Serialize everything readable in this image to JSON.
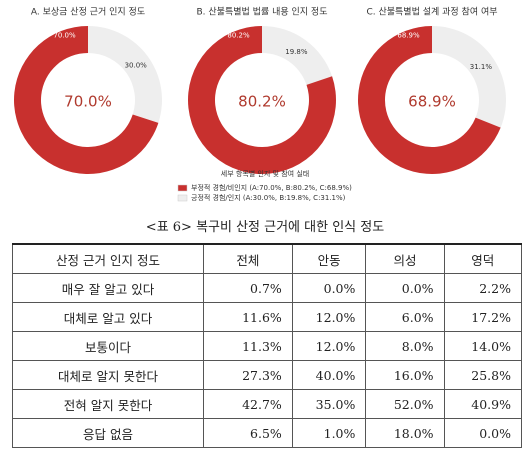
{
  "chart_data": [
    {
      "type": "pie",
      "title": "A. 보상금 산정 근거 인지 정도",
      "values": [
        70.0,
        30.0
      ],
      "value_labels": [
        "70.0%",
        "30.0%"
      ],
      "colors": [
        "#c8302e",
        "#eeeeee"
      ]
    },
    {
      "type": "pie",
      "title": "B. 산불특별법 법률 내용 인지 정도",
      "values": [
        80.2,
        19.8
      ],
      "value_labels": [
        "80.2%",
        "19.8%"
      ],
      "colors": [
        "#c8302e",
        "#eeeeee"
      ]
    },
    {
      "type": "pie",
      "title": "C. 산불특별법 설계 과정 참여 여부",
      "values": [
        68.9,
        31.1
      ],
      "value_labels": [
        "68.9%",
        "31.1%"
      ],
      "colors": [
        "#c8302e",
        "#eeeeee"
      ]
    }
  ],
  "legend": {
    "title": "세부 항목별 인지 및 참여 실태",
    "items": [
      {
        "label": "부정적 경험/비인지 (A:70.0%, B:80.2%, C:68.9%)",
        "color": "#c8302e"
      },
      {
        "label": "긍정적 경험/인지 (A:30.0%, B:19.8%, C:31.1%)",
        "color": "#eeeeee"
      }
    ]
  },
  "table": {
    "caption": "<표 6> 복구비 산정 근거에 대한 인식 정도",
    "header": [
      "산정 근거 인지 정도",
      "전체",
      "안동",
      "의성",
      "영덕"
    ],
    "rows": [
      [
        "매우 잘 알고 있다",
        "0.7%",
        "0.0%",
        "0.0%",
        "2.2%"
      ],
      [
        "대체로 알고 있다",
        "11.6%",
        "12.0%",
        "6.0%",
        "17.2%"
      ],
      [
        "보통이다",
        "11.3%",
        "12.0%",
        "8.0%",
        "14.0%"
      ],
      [
        "대체로 알지 못한다",
        "27.3%",
        "40.0%",
        "16.0%",
        "25.8%"
      ],
      [
        "전혀 알지 못한다",
        "42.7%",
        "35.0%",
        "52.0%",
        "40.9%"
      ],
      [
        "응답 없음",
        "6.5%",
        "1.0%",
        "18.0%",
        "0.0%"
      ]
    ]
  }
}
